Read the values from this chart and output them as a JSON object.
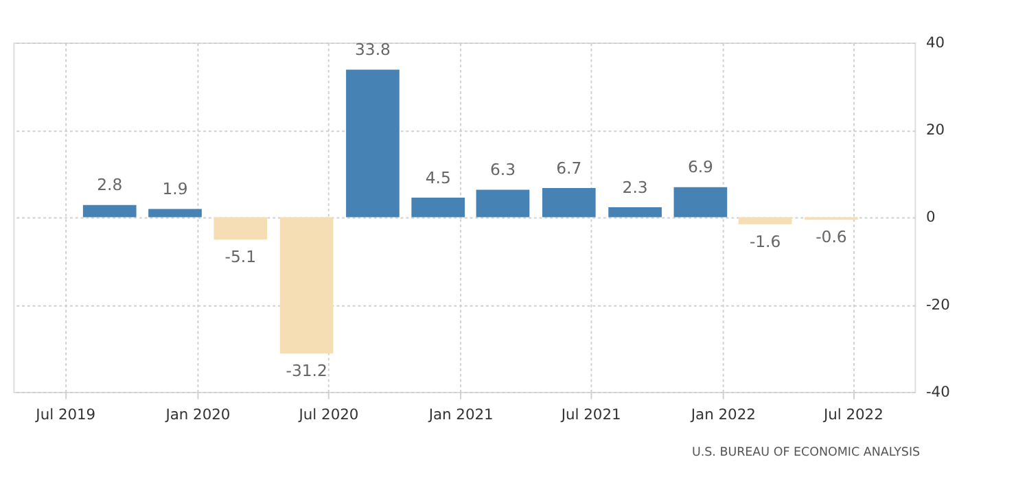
{
  "chart_data": {
    "type": "bar",
    "x": [
      "2019-09",
      "2019-12",
      "2020-03",
      "2020-06",
      "2020-09",
      "2020-12",
      "2021-03",
      "2021-06",
      "2021-09",
      "2021-12",
      "2022-03",
      "2022-06"
    ],
    "values": [
      2.8,
      1.9,
      -5.1,
      -31.2,
      33.8,
      4.5,
      6.3,
      6.7,
      2.3,
      6.9,
      -1.6,
      -0.6
    ],
    "colors": [
      "#4682b4",
      "#4682b4",
      "#f5deb3",
      "#f5deb3",
      "#4682b4",
      "#4682b4",
      "#4682b4",
      "#4682b4",
      "#4682b4",
      "#4682b4",
      "#f5deb3",
      "#f5deb3"
    ],
    "data_labels": true,
    "xlim": [
      "2019-04-20",
      "2022-09-25"
    ],
    "xticks": [
      {
        "value": "2019-07",
        "label": "Jul 2019"
      },
      {
        "value": "2020-01",
        "label": "Jan 2020"
      },
      {
        "value": "2020-07",
        "label": "Jul 2020"
      },
      {
        "value": "2021-01",
        "label": "Jan 2021"
      },
      {
        "value": "2021-07",
        "label": "Jul 2021"
      },
      {
        "value": "2022-01",
        "label": "Jan 2022"
      },
      {
        "value": "2022-07",
        "label": "Jul 2022"
      }
    ],
    "ylim": [
      -40,
      40
    ],
    "yticks": [
      -40,
      -20,
      0,
      20,
      40
    ],
    "grid": true,
    "annotations": [
      "U.S. BUREAU OF ECONOMIC ANALYSIS"
    ]
  }
}
